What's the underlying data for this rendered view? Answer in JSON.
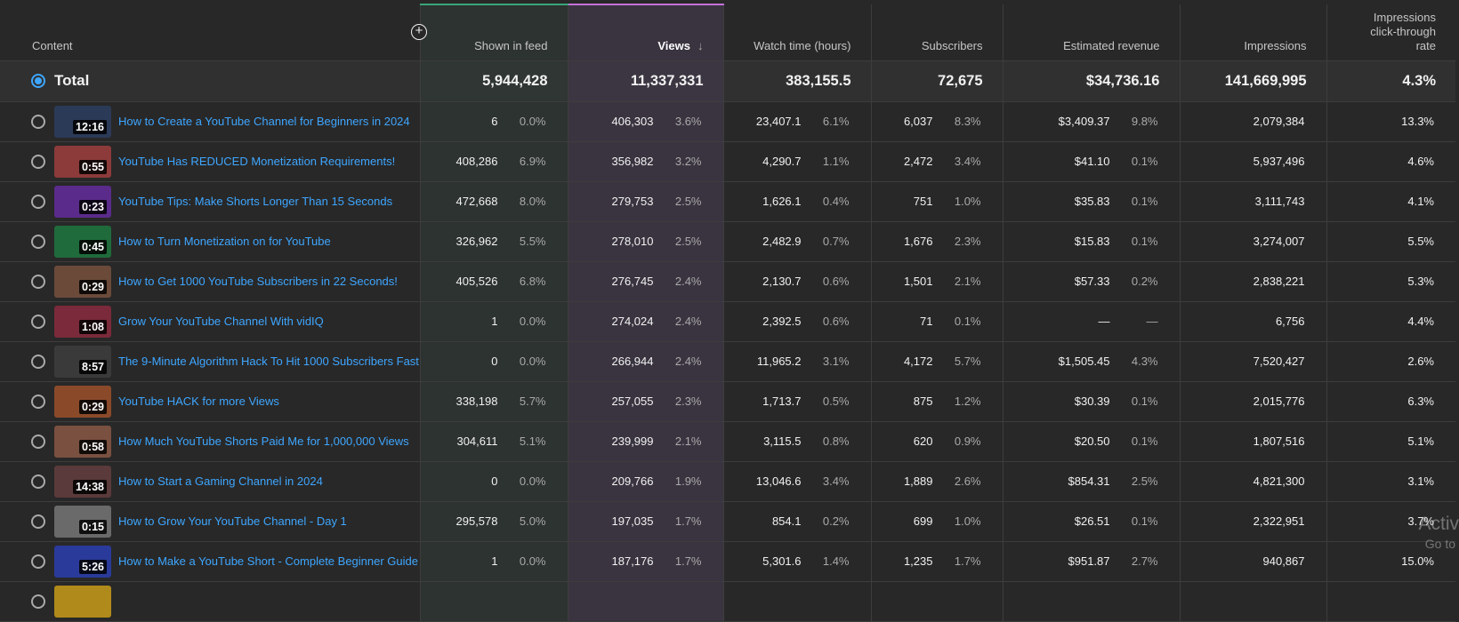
{
  "columns": {
    "content": "Content",
    "feed": "Shown in feed",
    "views": "Views",
    "views_sort": "↓",
    "watch": "Watch time (hours)",
    "subs": "Subscribers",
    "revenue": "Estimated revenue",
    "impressions": "Impressions",
    "ctr": "Impressions click-through rate"
  },
  "total": {
    "label": "Total",
    "feed": "5,944,428",
    "views": "11,337,331",
    "watch": "383,155.5",
    "subs": "72,675",
    "revenue": "$34,736.16",
    "impressions": "141,669,995",
    "ctr": "4.3%"
  },
  "rows": [
    {
      "title": "How to Create a YouTube Channel for Beginners in 2024",
      "duration": "12:16",
      "thumb_color": "#2b3a57",
      "feed": "6",
      "feed_pct": "0.0%",
      "views": "406,303",
      "views_pct": "3.6%",
      "watch": "23,407.1",
      "watch_pct": "6.1%",
      "subs": "6,037",
      "subs_pct": "8.3%",
      "revenue": "$3,409.37",
      "revenue_pct": "9.8%",
      "impressions": "2,079,384",
      "ctr": "13.3%"
    },
    {
      "title": "YouTube Has REDUCED Monetization Requirements!",
      "duration": "0:55",
      "thumb_color": "#8c3a3a",
      "feed": "408,286",
      "feed_pct": "6.9%",
      "views": "356,982",
      "views_pct": "3.2%",
      "watch": "4,290.7",
      "watch_pct": "1.1%",
      "subs": "2,472",
      "subs_pct": "3.4%",
      "revenue": "$41.10",
      "revenue_pct": "0.1%",
      "impressions": "5,937,496",
      "ctr": "4.6%"
    },
    {
      "title": "YouTube Tips: Make Shorts Longer Than 15 Seconds",
      "duration": "0:23",
      "thumb_color": "#5a2b8a",
      "feed": "472,668",
      "feed_pct": "8.0%",
      "views": "279,753",
      "views_pct": "2.5%",
      "watch": "1,626.1",
      "watch_pct": "0.4%",
      "subs": "751",
      "subs_pct": "1.0%",
      "revenue": "$35.83",
      "revenue_pct": "0.1%",
      "impressions": "3,111,743",
      "ctr": "4.1%"
    },
    {
      "title": "How to Turn Monetization on for YouTube",
      "duration": "0:45",
      "thumb_color": "#1f6b3b",
      "feed": "326,962",
      "feed_pct": "5.5%",
      "views": "278,010",
      "views_pct": "2.5%",
      "watch": "2,482.9",
      "watch_pct": "0.7%",
      "subs": "1,676",
      "subs_pct": "2.3%",
      "revenue": "$15.83",
      "revenue_pct": "0.1%",
      "impressions": "3,274,007",
      "ctr": "5.5%"
    },
    {
      "title": "How to Get 1000 YouTube Subscribers in 22 Seconds!",
      "duration": "0:29",
      "thumb_color": "#6b4a3a",
      "feed": "405,526",
      "feed_pct": "6.8%",
      "views": "276,745",
      "views_pct": "2.4%",
      "watch": "2,130.7",
      "watch_pct": "0.6%",
      "subs": "1,501",
      "subs_pct": "2.1%",
      "revenue": "$57.33",
      "revenue_pct": "0.2%",
      "impressions": "2,838,221",
      "ctr": "5.3%"
    },
    {
      "title": "Grow Your YouTube Channel With vidIQ",
      "duration": "1:08",
      "thumb_color": "#7a2a3a",
      "feed": "1",
      "feed_pct": "0.0%",
      "views": "274,024",
      "views_pct": "2.4%",
      "watch": "2,392.5",
      "watch_pct": "0.6%",
      "subs": "71",
      "subs_pct": "0.1%",
      "revenue": "—",
      "revenue_pct": "—",
      "impressions": "6,756",
      "ctr": "4.4%"
    },
    {
      "title": "The 9-Minute Algorithm Hack To Hit 1000 Subscribers Fast",
      "duration": "8:57",
      "thumb_color": "#3a3a3a",
      "feed": "0",
      "feed_pct": "0.0%",
      "views": "266,944",
      "views_pct": "2.4%",
      "watch": "11,965.2",
      "watch_pct": "3.1%",
      "subs": "4,172",
      "subs_pct": "5.7%",
      "revenue": "$1,505.45",
      "revenue_pct": "4.3%",
      "impressions": "7,520,427",
      "ctr": "2.6%"
    },
    {
      "title": "YouTube HACK for more Views",
      "duration": "0:29",
      "thumb_color": "#8a4a2a",
      "feed": "338,198",
      "feed_pct": "5.7%",
      "views": "257,055",
      "views_pct": "2.3%",
      "watch": "1,713.7",
      "watch_pct": "0.5%",
      "subs": "875",
      "subs_pct": "1.2%",
      "revenue": "$30.39",
      "revenue_pct": "0.1%",
      "impressions": "2,015,776",
      "ctr": "6.3%"
    },
    {
      "title": "How Much YouTube Shorts Paid Me for 1,000,000 Views",
      "duration": "0:58",
      "thumb_color": "#7a5040",
      "feed": "304,611",
      "feed_pct": "5.1%",
      "views": "239,999",
      "views_pct": "2.1%",
      "watch": "3,115.5",
      "watch_pct": "0.8%",
      "subs": "620",
      "subs_pct": "0.9%",
      "revenue": "$20.50",
      "revenue_pct": "0.1%",
      "impressions": "1,807,516",
      "ctr": "5.1%"
    },
    {
      "title": "How to Start a Gaming Channel in 2024",
      "duration": "14:38",
      "thumb_color": "#5a3a3a",
      "feed": "0",
      "feed_pct": "0.0%",
      "views": "209,766",
      "views_pct": "1.9%",
      "watch": "13,046.6",
      "watch_pct": "3.4%",
      "subs": "1,889",
      "subs_pct": "2.6%",
      "revenue": "$854.31",
      "revenue_pct": "2.5%",
      "impressions": "4,821,300",
      "ctr": "3.1%"
    },
    {
      "title": "How to Grow Your YouTube Channel - Day 1",
      "duration": "0:15",
      "thumb_color": "#6a6a6a",
      "feed": "295,578",
      "feed_pct": "5.0%",
      "views": "197,035",
      "views_pct": "1.7%",
      "watch": "854.1",
      "watch_pct": "0.2%",
      "subs": "699",
      "subs_pct": "1.0%",
      "revenue": "$26.51",
      "revenue_pct": "0.1%",
      "impressions": "2,322,951",
      "ctr": "3.7%"
    },
    {
      "title": "How to Make a YouTube Short - Complete Beginner Guide",
      "duration": "5:26",
      "thumb_color": "#2a3a9a",
      "feed": "1",
      "feed_pct": "0.0%",
      "views": "187,176",
      "views_pct": "1.7%",
      "watch": "5,301.6",
      "watch_pct": "1.4%",
      "subs": "1,235",
      "subs_pct": "1.7%",
      "revenue": "$951.87",
      "revenue_pct": "2.7%",
      "impressions": "940,867",
      "ctr": "15.0%"
    },
    {
      "title": "",
      "duration": "",
      "thumb_color": "#b08a1a",
      "feed": "",
      "feed_pct": "",
      "views": "",
      "views_pct": "",
      "watch": "",
      "watch_pct": "",
      "subs": "",
      "subs_pct": "",
      "revenue": "",
      "revenue_pct": "",
      "impressions": "",
      "ctr": ""
    }
  ],
  "overlay": {
    "activate_line1": "Activ",
    "activate_line2": "Go to"
  },
  "colors": {
    "accent": "#3ea6ff",
    "feed_col": "#2d3330",
    "views_col": "#3a3440",
    "feed_top": "#3aa57a",
    "views_top": "#c571d8"
  }
}
